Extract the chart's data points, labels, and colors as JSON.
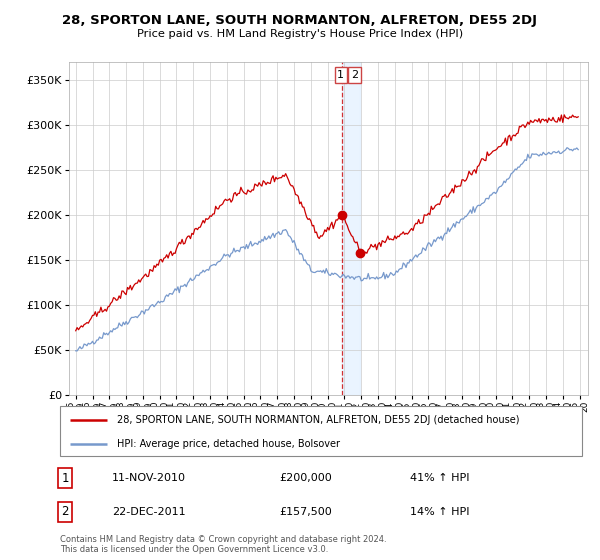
{
  "title": "28, SPORTON LANE, SOUTH NORMANTON, ALFRETON, DE55 2DJ",
  "subtitle": "Price paid vs. HM Land Registry's House Price Index (HPI)",
  "property_label": "28, SPORTON LANE, SOUTH NORMANTON, ALFRETON, DE55 2DJ (detached house)",
  "hpi_label": "HPI: Average price, detached house, Bolsover",
  "property_color": "#cc0000",
  "hpi_color": "#7799cc",
  "sale1_date": "11-NOV-2010",
  "sale1_price": 200000,
  "sale1_pct": "41% ↑ HPI",
  "sale2_date": "22-DEC-2011",
  "sale2_price": 157500,
  "sale2_pct": "14% ↑ HPI",
  "ylim": [
    0,
    370000
  ],
  "yticks": [
    0,
    50000,
    100000,
    150000,
    200000,
    250000,
    300000,
    350000
  ],
  "ytick_labels": [
    "£0",
    "£50K",
    "£100K",
    "£150K",
    "£200K",
    "£250K",
    "£300K",
    "£350K"
  ],
  "footer": "Contains HM Land Registry data © Crown copyright and database right 2024.\nThis data is licensed under the Open Government Licence v3.0.",
  "xlim_left": 1994.6,
  "xlim_right": 2025.5
}
